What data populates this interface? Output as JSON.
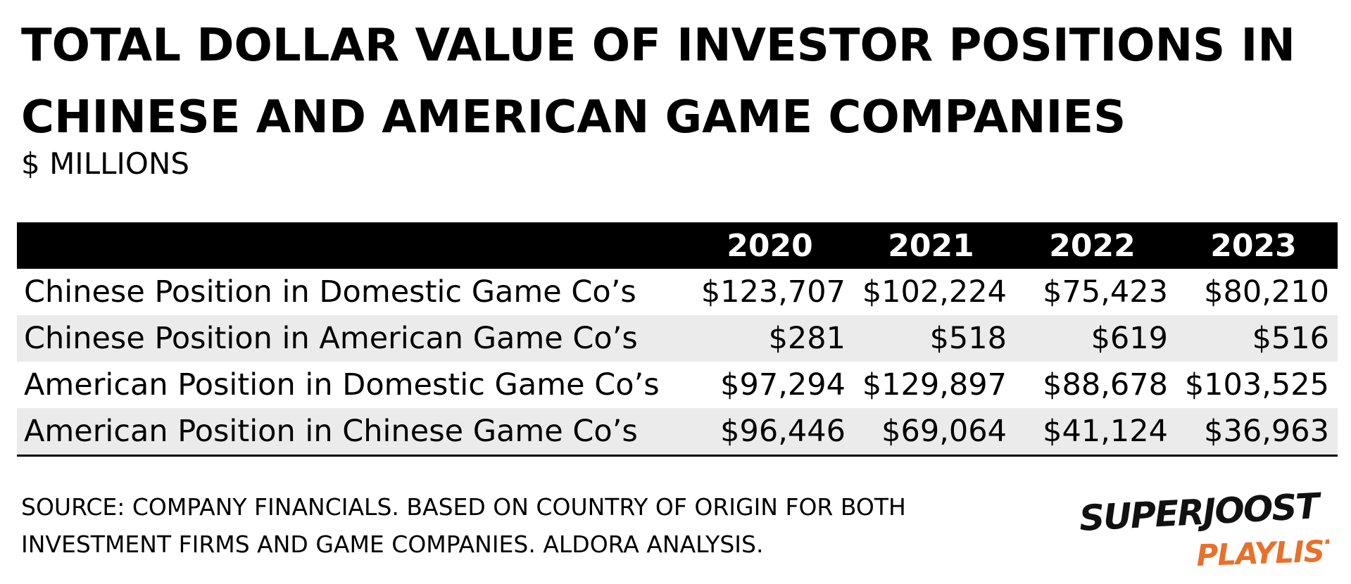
{
  "title": "TOTAL DOLLAR VALUE OF INVESTOR POSITIONS IN CHINESE AND AMERICAN GAME COMPANIES",
  "subtitle": "$ MILLIONS",
  "source": "SOURCE: COMPANY FINANCIALS. BASED ON COUNTRY OF ORIGIN FOR BOTH INVESTMENT FIRMS AND GAME COMPANIES. ALDORA ANALYSIS.",
  "logo": {
    "line1": "SUPERJOOST",
    "line2": "PLAYLIST",
    "accent_color": "#e8702a"
  },
  "colors": {
    "header_bg": "#000000",
    "header_text": "#ffffff",
    "row_shade": "#ebebeb"
  },
  "chart_data": {
    "type": "table",
    "title": "TOTAL DOLLAR VALUE OF INVESTOR POSITIONS IN CHINESE AND AMERICAN GAME COMPANIES",
    "subtitle": "$ MILLIONS",
    "columns": [
      "2020",
      "2021",
      "2022",
      "2023"
    ],
    "rows": [
      {
        "label": "Chinese Position in Domestic Game Co’s",
        "values": [
          "$123,707",
          "$102,224",
          "$75,423",
          "$80,210"
        ]
      },
      {
        "label": "Chinese Position in American Game Co’s",
        "values": [
          "$281",
          "$518",
          "$619",
          "$516"
        ]
      },
      {
        "label": "American Position in Domestic Game Co’s",
        "values": [
          "$97,294",
          "$129,897",
          "$88,678",
          "$103,525"
        ]
      },
      {
        "label": "American Position in Chinese Game Co’s",
        "values": [
          "$96,446",
          "$69,064",
          "$41,124",
          "$36,963"
        ]
      }
    ]
  }
}
